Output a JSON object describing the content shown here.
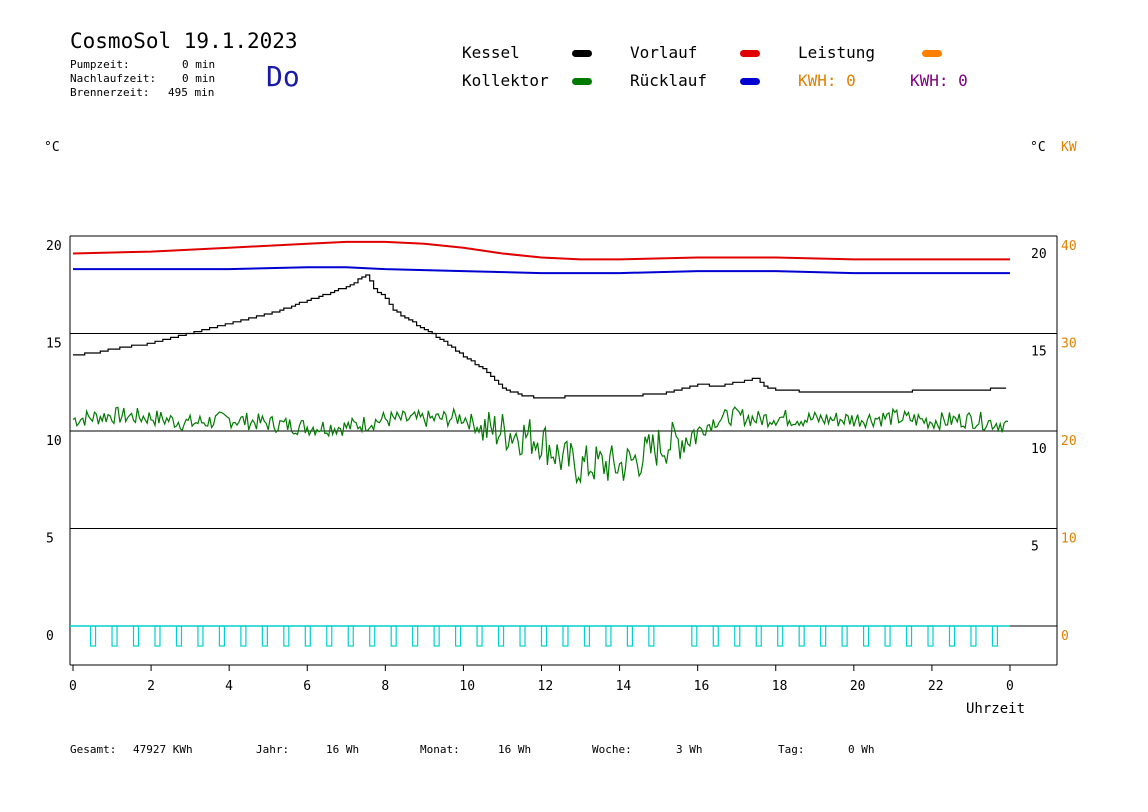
{
  "header": {
    "title": "CosmoSol 19.1.2023",
    "day": "Do",
    "pump_label": "Pumpzeit:",
    "pump_value": "0 min",
    "nachlauf_label": "Nachlaufzeit:",
    "nachlauf_value": "0 min",
    "brenner_label": "Brennerzeit:",
    "brenner_value": "495 min"
  },
  "legend": {
    "kessel": "Kessel",
    "kollektor": "Kollektor",
    "vorlauf": "Vorlauf",
    "ruecklauf": "Rücklauf",
    "leistung": "Leistung",
    "kwh_orange": "KWH: 0",
    "kwh_purple": "KWH: 0"
  },
  "axes": {
    "left_unit": "°C",
    "right_unit": "°C",
    "right_unit2": "KW",
    "xlabel": "Uhrzeit"
  },
  "footer": {
    "gesamt_label": "Gesamt:",
    "gesamt_value": "47927 KWh",
    "jahr_label": "Jahr:",
    "jahr_value": "16 Wh",
    "monat_label": "Monat:",
    "monat_value": "16 Wh",
    "woche_label": "Woche:",
    "woche_value": "3 Wh",
    "tag_label": "Tag:",
    "tag_value": "0 Wh"
  },
  "colors": {
    "kessel": "#000000",
    "kollektor": "#007a00",
    "vorlauf": "#e00000",
    "ruecklauf": "#0000d0",
    "leistung": "#ff8000",
    "kwh_purple": "#800080",
    "pumpe": "#00d0d0"
  },
  "chart_data": {
    "type": "line",
    "xlabel": "Uhrzeit",
    "ylabel": "°C",
    "xlim": [
      0,
      24
    ],
    "ylim": [
      0,
      20
    ],
    "grid": true,
    "left_ticks": [
      "20",
      "15",
      "10",
      "5",
      "0"
    ],
    "right_ticks": [
      "20",
      "15",
      "10",
      "5"
    ],
    "kw_ticks": [
      "40",
      "30",
      "20",
      "10",
      "0"
    ],
    "x_ticks": [
      "0",
      "2",
      "4",
      "6",
      "8",
      "10",
      "12",
      "14",
      "16",
      "18",
      "20",
      "22",
      "0"
    ],
    "series": [
      {
        "name": "Vorlauf",
        "x": [
          0,
          2,
          4,
          6,
          7,
          8,
          9,
          10,
          11,
          12,
          13,
          14,
          16,
          18,
          20,
          22,
          24
        ],
        "y": [
          19.1,
          19.2,
          19.4,
          19.6,
          19.7,
          19.7,
          19.6,
          19.4,
          19.1,
          18.9,
          18.8,
          18.8,
          18.9,
          18.9,
          18.8,
          18.8,
          18.8
        ]
      },
      {
        "name": "Rücklauf",
        "x": [
          0,
          4,
          6,
          7,
          8,
          10,
          12,
          14,
          16,
          18,
          20,
          22,
          24
        ],
        "y": [
          18.3,
          18.3,
          18.4,
          18.4,
          18.3,
          18.2,
          18.1,
          18.1,
          18.2,
          18.2,
          18.1,
          18.1,
          18.1
        ]
      },
      {
        "name": "Kessel",
        "x": [
          0,
          0.5,
          1,
          2,
          3,
          4,
          5,
          6,
          7,
          7.5,
          7.7,
          8,
          8.2,
          8.5,
          9,
          9.5,
          10,
          10.5,
          11,
          11.5,
          12,
          13,
          14,
          15,
          15.5,
          16,
          16.5,
          17,
          17.5,
          17.7,
          18,
          19,
          20,
          21,
          22,
          23,
          24
        ],
        "y": [
          13.9,
          14.0,
          14.2,
          14.5,
          15.0,
          15.5,
          16.0,
          16.7,
          17.4,
          18.0,
          17.3,
          16.8,
          16.2,
          15.8,
          15.2,
          14.6,
          13.8,
          13.2,
          12.2,
          11.8,
          11.7,
          11.8,
          11.8,
          11.9,
          12.1,
          12.4,
          12.3,
          12.5,
          12.7,
          12.3,
          12.1,
          12.0,
          12.0,
          12.0,
          12.1,
          12.1,
          12.2
        ]
      },
      {
        "name": "Kollektor",
        "x": [
          0,
          1,
          2,
          3,
          4,
          5,
          6,
          7,
          8,
          9,
          10,
          10.5,
          11,
          11.5,
          12,
          12.5,
          13,
          13.5,
          14,
          14.5,
          15,
          15.5,
          16,
          16.5,
          17,
          17.5,
          18,
          19,
          20,
          21,
          22,
          23,
          24
        ],
        "y": [
          10.6,
          10.8,
          10.7,
          10.4,
          10.6,
          10.4,
          10.2,
          10.2,
          10.6,
          10.6,
          10.7,
          10.1,
          10.0,
          9.8,
          9.6,
          8.6,
          8.2,
          8.3,
          8.2,
          8.6,
          9.2,
          9.5,
          10.0,
          10.6,
          10.8,
          10.6,
          10.7,
          10.6,
          10.6,
          10.7,
          10.5,
          10.6,
          10.3
        ]
      },
      {
        "name": "Leistung",
        "x": [
          0,
          24
        ],
        "y": [
          0,
          0
        ]
      }
    ]
  }
}
